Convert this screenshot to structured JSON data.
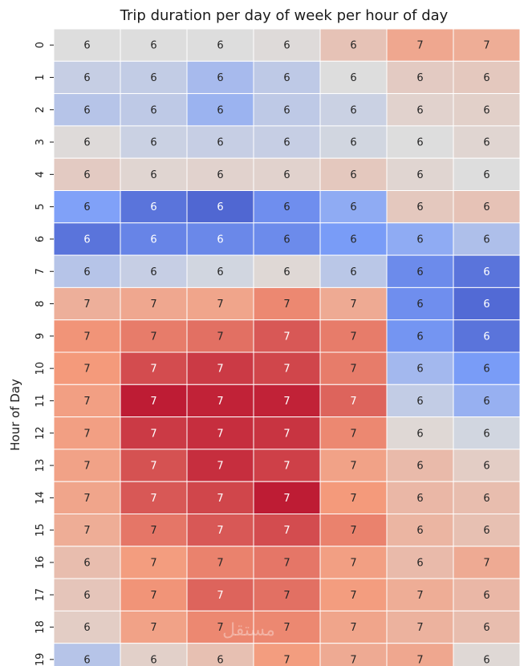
{
  "chart_data": {
    "type": "heatmap",
    "title": "Trip duration per day of week per hour of day",
    "ylabel": "Hour of Day",
    "xlabel": "",
    "rows": [
      "0",
      "1",
      "2",
      "3",
      "4",
      "5",
      "6",
      "7",
      "8",
      "9",
      "10",
      "11",
      "12",
      "13",
      "14",
      "15",
      "16",
      "17",
      "18",
      "19"
    ],
    "columns": 7,
    "annotations": [
      [
        6,
        6,
        6,
        6,
        6,
        7,
        7
      ],
      [
        6,
        6,
        6,
        6,
        6,
        6,
        6
      ],
      [
        6,
        6,
        6,
        6,
        6,
        6,
        6
      ],
      [
        6,
        6,
        6,
        6,
        6,
        6,
        6
      ],
      [
        6,
        6,
        6,
        6,
        6,
        6,
        6
      ],
      [
        6,
        6,
        6,
        6,
        6,
        6,
        6
      ],
      [
        6,
        6,
        6,
        6,
        6,
        6,
        6
      ],
      [
        6,
        6,
        6,
        6,
        6,
        6,
        6
      ],
      [
        7,
        7,
        7,
        7,
        7,
        6,
        6
      ],
      [
        7,
        7,
        7,
        7,
        7,
        6,
        6
      ],
      [
        7,
        7,
        7,
        7,
        7,
        6,
        6
      ],
      [
        7,
        7,
        7,
        7,
        7,
        6,
        6
      ],
      [
        7,
        7,
        7,
        7,
        7,
        6,
        6
      ],
      [
        7,
        7,
        7,
        7,
        7,
        6,
        6
      ],
      [
        7,
        7,
        7,
        7,
        7,
        6,
        6
      ],
      [
        7,
        7,
        7,
        7,
        7,
        6,
        6
      ],
      [
        6,
        7,
        7,
        7,
        7,
        6,
        7
      ],
      [
        6,
        7,
        7,
        7,
        7,
        7,
        6
      ],
      [
        6,
        7,
        7,
        7,
        7,
        7,
        6
      ],
      [
        6,
        6,
        6,
        7,
        7,
        7,
        6
      ]
    ],
    "intensity": [
      [
        0.5,
        0.5,
        0.5,
        0.51,
        0.6,
        0.7,
        0.68
      ],
      [
        0.44,
        0.43,
        0.36,
        0.42,
        0.5,
        0.57,
        0.58
      ],
      [
        0.4,
        0.42,
        0.33,
        0.42,
        0.45,
        0.54,
        0.55
      ],
      [
        0.51,
        0.45,
        0.44,
        0.44,
        0.47,
        0.5,
        0.53
      ],
      [
        0.57,
        0.53,
        0.54,
        0.54,
        0.58,
        0.53,
        0.5
      ],
      [
        0.26,
        0.12,
        0.08,
        0.2,
        0.3,
        0.58,
        0.6
      ],
      [
        0.12,
        0.17,
        0.18,
        0.19,
        0.24,
        0.3,
        0.38
      ],
      [
        0.4,
        0.44,
        0.47,
        0.52,
        0.41,
        0.19,
        0.12
      ],
      [
        0.67,
        0.7,
        0.71,
        0.78,
        0.69,
        0.2,
        0.09
      ],
      [
        0.76,
        0.8,
        0.82,
        0.86,
        0.8,
        0.22,
        0.12
      ],
      [
        0.75,
        0.88,
        0.91,
        0.89,
        0.8,
        0.35,
        0.24
      ],
      [
        0.73,
        0.96,
        0.95,
        0.95,
        0.84,
        0.43,
        0.32
      ],
      [
        0.73,
        0.91,
        0.93,
        0.92,
        0.78,
        0.52,
        0.47
      ],
      [
        0.72,
        0.87,
        0.93,
        0.9,
        0.72,
        0.63,
        0.56
      ],
      [
        0.71,
        0.86,
        0.89,
        0.96,
        0.75,
        0.64,
        0.62
      ],
      [
        0.68,
        0.81,
        0.86,
        0.88,
        0.79,
        0.65,
        0.61
      ],
      [
        0.62,
        0.74,
        0.79,
        0.81,
        0.73,
        0.63,
        0.69
      ],
      [
        0.59,
        0.76,
        0.84,
        0.82,
        0.74,
        0.68,
        0.64
      ],
      [
        0.56,
        0.72,
        0.78,
        0.78,
        0.71,
        0.66,
        0.62
      ],
      [
        0.4,
        0.55,
        0.61,
        0.74,
        0.69,
        0.7,
        0.52
      ]
    ],
    "colormap": "coolwarm"
  },
  "watermark": "مستقل"
}
